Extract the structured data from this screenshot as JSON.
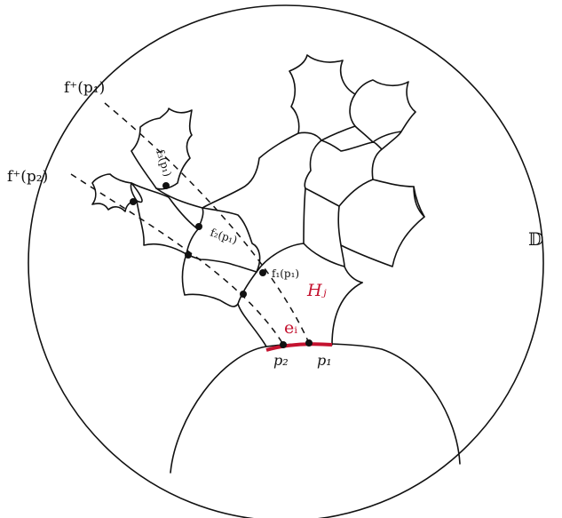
{
  "labels": {
    "disk": "𝔻",
    "f_plus_p1": "f⁺(p₁)",
    "f_plus_p2": "f⁺(p₂)",
    "f1_p1": "f₁(p₁)",
    "f2_p1": "f₂(p₁)",
    "f3_p1": "f₃(p₁)",
    "H_j": "Hⱼ",
    "e_i": "eᵢ",
    "p1": "p₁",
    "p2": "p₂"
  },
  "colors": {
    "ink": "#111111",
    "accent": "#c4122f"
  }
}
